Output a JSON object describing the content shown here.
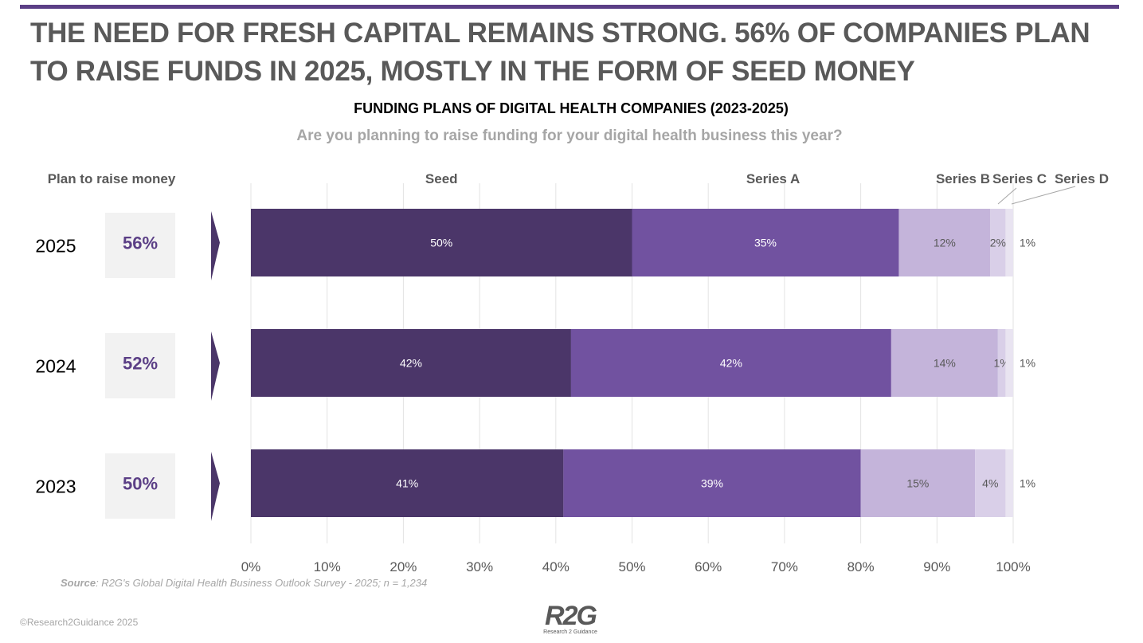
{
  "title": "THE NEED FOR FRESH CAPITAL REMAINS STRONG. 56% OF COMPANIES PLAN TO RAISE FUNDS IN 2025, MOSTLY IN THE FORM OF SEED MONEY",
  "colors": {
    "accent": "#5b3f86",
    "seed": "#4b3669",
    "series_a": "#7152a0",
    "series_b": "#c4b4da",
    "series_c": "#d9cfe8",
    "series_d": "#e9e4f1"
  },
  "chart_data": {
    "type": "bar",
    "orientation": "horizontal",
    "stacked": true,
    "title": "FUNDING PLANS OF DIGITAL HEALTH COMPANIES (2023-2025)",
    "subtitle": "Are you planning to raise funding for your digital health business this year?",
    "categories": [
      "2025",
      "2024",
      "2023"
    ],
    "series": [
      {
        "name": "Seed",
        "values": [
          50,
          42,
          41
        ]
      },
      {
        "name": "Series A",
        "values": [
          35,
          42,
          39
        ]
      },
      {
        "name": "Series B",
        "values": [
          12,
          14,
          15
        ]
      },
      {
        "name": "Series C",
        "values": [
          2,
          1,
          4
        ]
      },
      {
        "name": "Series D",
        "values": [
          1,
          1,
          1
        ]
      }
    ],
    "plan_to_raise_label": "Plan to raise money",
    "plan_to_raise": [
      "56%",
      "52%",
      "50%"
    ],
    "xlim": [
      0,
      100
    ],
    "xticks": [
      "0%",
      "10%",
      "20%",
      "30%",
      "40%",
      "50%",
      "60%",
      "70%",
      "80%",
      "90%",
      "100%"
    ],
    "grid": true
  },
  "footer": {
    "source_label": "Source",
    "source_text": ":  R2G's Global Digital Health Business Outlook Survey - 2025; n = 1,234",
    "copyright": "©Research2Guidance 2025",
    "logo_text": "R2G",
    "logo_sub": "Research 2 Guidance"
  }
}
